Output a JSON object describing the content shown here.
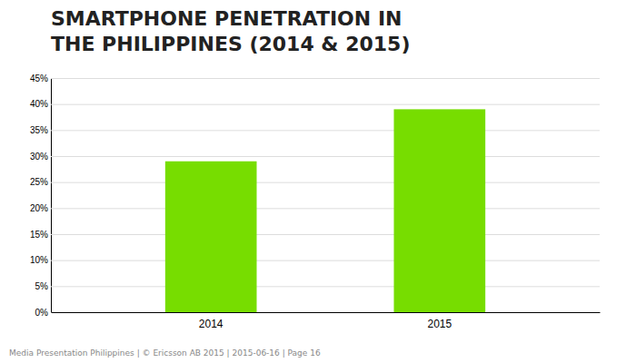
{
  "chart_data": {
    "type": "bar",
    "title": [
      "SMARTPHONE PENETRATION IN",
      "THE PHILIPPINES (2014 & 2015)"
    ],
    "annotations": [
      "Media Presentation Philippines  |  © Ericsson AB 2015  |  2015-06-16  |  Page 16"
    ],
    "categories": [
      "2014",
      "2015"
    ],
    "values": [
      0.29,
      0.39
    ],
    "color": "#77DD00",
    "ylim": [
      0,
      0.45
    ],
    "yticks": [
      {
        "value": 0,
        "label": "0%"
      },
      {
        "value": 0.05,
        "label": "5%"
      },
      {
        "value": 0.1,
        "label": "10%"
      },
      {
        "value": 0.15,
        "label": "15%"
      },
      {
        "value": 0.2,
        "label": "20%"
      },
      {
        "value": 0.25,
        "label": "25%"
      },
      {
        "value": 0.3,
        "label": "30%"
      },
      {
        "value": 0.35,
        "label": "35%"
      },
      {
        "value": 0.4,
        "label": "40%"
      },
      {
        "value": 0.45,
        "label": "45%"
      }
    ],
    "grid": true
  }
}
